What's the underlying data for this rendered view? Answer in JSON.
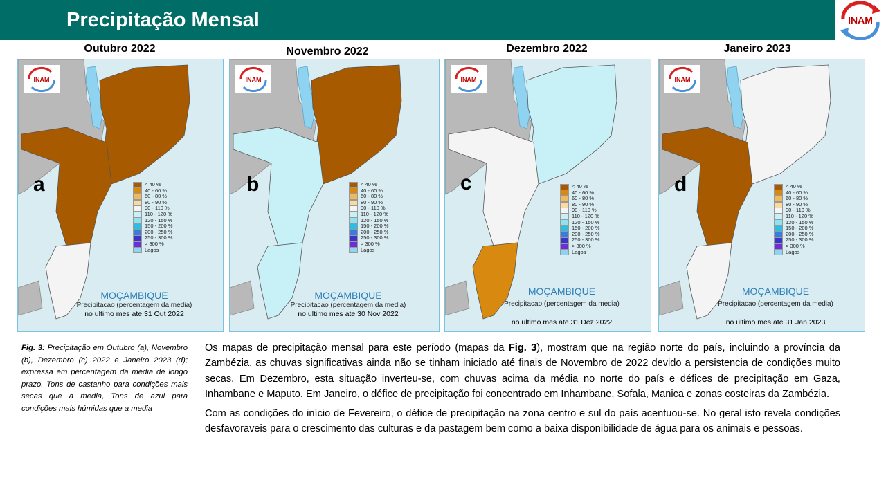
{
  "header": {
    "title": "Precipitação Mensal",
    "logo_text": "INAM"
  },
  "colors": {
    "header_bg": "#006e66",
    "map_bg": "#d9ecf2",
    "land_other": "#b9b9b9",
    "lake": "#8fd3f0"
  },
  "maps": [
    {
      "title": "Outubro 2022",
      "letter": "a",
      "country": "MOÇAMBIQUE",
      "subtitle": "Precipitacao (percentagem da media)",
      "date": "no ultimo mes ate 31 Out 2022",
      "logo": "INAM",
      "north_class": "< 40 %",
      "centre_class": "< 40 %",
      "south_class": "90 - 110 %"
    },
    {
      "title": "Novembro 2022",
      "letter": "b",
      "country": "MOÇAMBIQUE",
      "subtitle": "Precipitacao (percentagem da media)",
      "date": "no ultimo mes ate 30 Nov 2022",
      "logo": "INAM",
      "north_class": "< 40 %",
      "centre_class": "110 - 120 %",
      "south_class": "110 - 120 %"
    },
    {
      "title": "Dezembro 2022",
      "letter": "c",
      "country": "MOÇAMBIQUE",
      "subtitle": "Precipitacao (percentagem da media)",
      "date": "no ultimo mes ate 31 Dez 2022",
      "logo": "INAM",
      "north_class": "110 - 120 %",
      "centre_class": "90 - 110 %",
      "south_class": "40 - 60 %"
    },
    {
      "title": "Janeiro 2023",
      "letter": "d",
      "country": "MOÇAMBIQUE",
      "subtitle": "Precipitacao (percentagem da media)",
      "date": "no ultimo mes ate 31 Jan 2023",
      "logo": "INAM",
      "north_class": "90 - 110 %",
      "centre_class": "< 40 %",
      "south_class": "90 - 110 %"
    }
  ],
  "legend": [
    {
      "label": "< 40 %",
      "color": "#a85a00"
    },
    {
      "label": "40 - 60 %",
      "color": "#d88a10"
    },
    {
      "label": "60 - 80 %",
      "color": "#f0b960"
    },
    {
      "label": "80 - 90 %",
      "color": "#f7dba0"
    },
    {
      "label": "90 - 110 %",
      "color": "#f4f4f4"
    },
    {
      "label": "110 - 120 %",
      "color": "#c8f0f7"
    },
    {
      "label": "120 - 150 %",
      "color": "#8ee3f2"
    },
    {
      "label": "150 - 200 %",
      "color": "#27bfe5"
    },
    {
      "label": "200 - 250 %",
      "color": "#3b7be0"
    },
    {
      "label": "250 - 300 %",
      "color": "#3a35c8"
    },
    {
      "label": "> 300 %",
      "color": "#6a2fd8"
    },
    {
      "label": "Lagos",
      "color": "#8fd3f0"
    }
  ],
  "caption": {
    "prefix": "Fig. 3:",
    "text": " Precipitação em Outubro (a), Novembro (b), Dezembro (c) 2022 e Janeiro 2023 (d); expressa em percentagem da média de longo prazo. Tons de castanho para condições mais secas que a media, Tons de azul para condições mais húmidas que a media"
  },
  "body": {
    "p1_a": "Os mapas de precipitação mensal para este período (mapas da ",
    "p1_fig": "Fig. 3",
    "p1_b": "), mostram que na região norte do país, incluindo a província da Zambézia, as chuvas significativas ainda não se tinham iniciado até finais de Novembro de 2022 devido a persistencia de condições muito secas. Em Dezembro, esta situação inverteu-se, com chuvas acima da média no norte do país e défices de precipitação em Gaza, Inhambane e Maputo. Em Janeiro, o défice de precipitação foi concentrado em Inhambane, Sofala, Manica e  zonas costeiras da Zambézia.",
    "p2": "Com as condições do início de Fevereiro, o défice de precipitação na zona centro e sul do país acentuou-se. No geral isto revela condições desfavoraveis para o crescimento das culturas e da pastagem bem como a baixa disponibilidade de água para os animais e pessoas."
  }
}
